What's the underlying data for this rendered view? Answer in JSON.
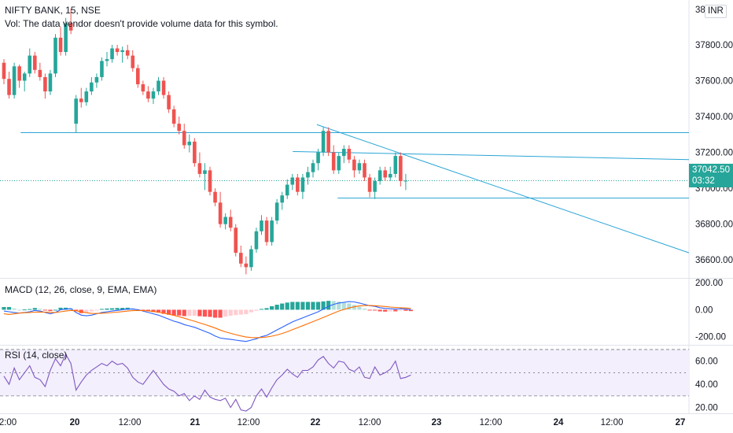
{
  "header": {
    "symbol_line": "NIFTY BANK, 15, NSE",
    "volume_note": "Vol: The data vendor doesn't provide volume data for this symbol."
  },
  "currency_badge": "INR",
  "price_scale_top_label": "38",
  "last_price": {
    "value": "37042.50",
    "countdown": "03:32"
  },
  "colors": {
    "up": "#26a69a",
    "down": "#ef5350",
    "trendline": "#2aa5d6",
    "macd_line": "#2962ff",
    "signal_line": "#ff6d00",
    "hist_up_strong": "#26a69a",
    "hist_up_weak": "#b2dfdb",
    "hist_down_strong": "#ff5252",
    "hist_down_weak": "#ffcdd2",
    "rsi_line": "#7e57c2",
    "rsi_band": "#f3effc"
  },
  "chart_data": [
    {
      "type": "candlestick",
      "title": "NIFTY BANK, 15, NSE",
      "ylim": [
        36500,
        38050
      ],
      "y_ticks": [
        "37800.00",
        "37600.00",
        "37400.00",
        "37200.00",
        "37000.00",
        "36800.00",
        "36600.00"
      ],
      "x_ticks": [
        "2:00",
        "20",
        "12:00",
        "21",
        "12:00",
        "22",
        "12:00",
        "23",
        "12:00",
        "24",
        "12:00",
        "27"
      ],
      "candles": [
        [
          37700,
          37720,
          37580,
          37610
        ],
        [
          37610,
          37650,
          37500,
          37520
        ],
        [
          37520,
          37700,
          37500,
          37680
        ],
        [
          37680,
          37690,
          37560,
          37600
        ],
        [
          37600,
          37650,
          37540,
          37640
        ],
        [
          37640,
          37780,
          37620,
          37740
        ],
        [
          37740,
          37760,
          37640,
          37660
        ],
        [
          37660,
          37700,
          37600,
          37620
        ],
        [
          37620,
          37640,
          37500,
          37540
        ],
        [
          37540,
          37660,
          37520,
          37640
        ],
        [
          37640,
          37860,
          37620,
          37840
        ],
        [
          37840,
          37900,
          37740,
          37760
        ],
        [
          37760,
          37950,
          37740,
          37920
        ],
        [
          37920,
          38000,
          37860,
          37880
        ],
        [
          37360,
          37520,
          37310,
          37500
        ],
        [
          37500,
          37560,
          37450,
          37480
        ],
        [
          37480,
          37560,
          37460,
          37540
        ],
        [
          37540,
          37620,
          37520,
          37590
        ],
        [
          37590,
          37640,
          37560,
          37620
        ],
        [
          37620,
          37730,
          37600,
          37710
        ],
        [
          37710,
          37760,
          37680,
          37720
        ],
        [
          37720,
          37800,
          37700,
          37780
        ],
        [
          37780,
          37800,
          37740,
          37760
        ],
        [
          37760,
          37790,
          37700,
          37770
        ],
        [
          37770,
          37800,
          37720,
          37740
        ],
        [
          37740,
          37770,
          37650,
          37670
        ],
        [
          37670,
          37690,
          37560,
          37580
        ],
        [
          37580,
          37600,
          37520,
          37540
        ],
        [
          37540,
          37570,
          37480,
          37500
        ],
        [
          37500,
          37560,
          37470,
          37540
        ],
        [
          37540,
          37620,
          37520,
          37600
        ],
        [
          37600,
          37620,
          37500,
          37520
        ],
        [
          37520,
          37540,
          37420,
          37440
        ],
        [
          37440,
          37460,
          37340,
          37360
        ],
        [
          37360,
          37400,
          37300,
          37320
        ],
        [
          37320,
          37360,
          37220,
          37240
        ],
        [
          37240,
          37300,
          37200,
          37260
        ],
        [
          37260,
          37280,
          37120,
          37140
        ],
        [
          37140,
          37200,
          37060,
          37080
        ],
        [
          37080,
          37140,
          36990,
          37100
        ],
        [
          37100,
          37120,
          36960,
          36980
        ],
        [
          36980,
          37000,
          36900,
          36920
        ],
        [
          36920,
          36980,
          36780,
          36800
        ],
        [
          36800,
          36860,
          36770,
          36840
        ],
        [
          36840,
          36880,
          36760,
          36780
        ],
        [
          36780,
          36800,
          36620,
          36640
        ],
        [
          36640,
          36680,
          36560,
          36580
        ],
        [
          36580,
          36620,
          36520,
          36560
        ],
        [
          36560,
          36680,
          36540,
          36660
        ],
        [
          36660,
          36780,
          36640,
          36760
        ],
        [
          36760,
          36850,
          36740,
          36820
        ],
        [
          36820,
          36840,
          36680,
          36700
        ],
        [
          36700,
          36840,
          36680,
          36820
        ],
        [
          36820,
          36940,
          36800,
          36920
        ],
        [
          36920,
          36980,
          36880,
          36960
        ],
        [
          36960,
          37050,
          36940,
          37020
        ],
        [
          37020,
          37080,
          36990,
          37060
        ],
        [
          37060,
          37080,
          36960,
          36980
        ],
        [
          36980,
          37080,
          36940,
          37060
        ],
        [
          37060,
          37120,
          37020,
          37090
        ],
        [
          37090,
          37160,
          37060,
          37140
        ],
        [
          37140,
          37220,
          37100,
          37200
        ],
        [
          37200,
          37340,
          37180,
          37320
        ],
        [
          37320,
          37340,
          37180,
          37200
        ],
        [
          37200,
          37240,
          37080,
          37100
        ],
        [
          37100,
          37200,
          37080,
          37180
        ],
        [
          37180,
          37240,
          37140,
          37220
        ],
        [
          37220,
          37240,
          37140,
          37160
        ],
        [
          37160,
          37180,
          37060,
          37100
        ],
        [
          37100,
          37160,
          37080,
          37140
        ],
        [
          37140,
          37160,
          37040,
          37060
        ],
        [
          37060,
          37080,
          36950,
          36980
        ],
        [
          36980,
          37060,
          36940,
          37040
        ],
        [
          37040,
          37120,
          37020,
          37100
        ],
        [
          37100,
          37120,
          37040,
          37060
        ],
        [
          37060,
          37120,
          37040,
          37080
        ],
        [
          37080,
          37200,
          37060,
          37180
        ],
        [
          37180,
          37200,
          37010,
          37040
        ],
        [
          37040,
          37080,
          36990,
          37042.5
        ]
      ],
      "last_price": 37042.5,
      "horizontal_levels": [
        37310,
        36945
      ],
      "trendlines": [
        {
          "from": [
            0.03,
            37310
          ],
          "to": [
            1.0,
            37310
          ]
        },
        {
          "from": [
            0.46,
            37355
          ],
          "to": [
            1.0,
            36640
          ]
        },
        {
          "from": [
            0.425,
            37205
          ],
          "to": [
            1.0,
            37160
          ]
        },
        {
          "from": [
            0.49,
            36945
          ],
          "to": [
            1.0,
            36945
          ]
        }
      ]
    },
    {
      "type": "macd",
      "title": "MACD (12, 26, close, 9, EMA, EMA)",
      "ylim": [
        -260,
        230
      ],
      "y_ticks": [
        "200.00",
        "0.00",
        "-200.00"
      ],
      "macd": [
        -10,
        -15,
        -20,
        -25,
        -20,
        -15,
        -5,
        -10,
        -20,
        -30,
        -20,
        0,
        5,
        8,
        -20,
        -40,
        -45,
        -40,
        -30,
        -20,
        -15,
        -10,
        -5,
        0,
        5,
        5,
        0,
        -10,
        -20,
        -30,
        -40,
        -55,
        -70,
        -85,
        -95,
        -110,
        -120,
        -130,
        -145,
        -160,
        -175,
        -195,
        -210,
        -215,
        -220,
        -225,
        -230,
        -235,
        -225,
        -215,
        -200,
        -190,
        -170,
        -150,
        -130,
        -110,
        -90,
        -75,
        -60,
        -45,
        -30,
        -15,
        5,
        25,
        40,
        50,
        55,
        60,
        58,
        50,
        40,
        30,
        25,
        15,
        10,
        8,
        5,
        8,
        5,
        0
      ],
      "signal": [
        -30,
        -35,
        -30,
        -25,
        -22,
        -20,
        -18,
        -17,
        -18,
        -20,
        -20,
        -15,
        -10,
        -5,
        -8,
        -15,
        -22,
        -27,
        -28,
        -26,
        -24,
        -21,
        -18,
        -14,
        -10,
        -7,
        -5,
        -6,
        -9,
        -13,
        -18,
        -25,
        -33,
        -42,
        -52,
        -63,
        -74,
        -85,
        -97,
        -109,
        -122,
        -136,
        -151,
        -164,
        -175,
        -185,
        -194,
        -202,
        -206,
        -207,
        -206,
        -202,
        -196,
        -187,
        -176,
        -163,
        -148,
        -133,
        -118,
        -103,
        -88,
        -73,
        -57,
        -41,
        -25,
        -10,
        2,
        13,
        22,
        28,
        31,
        31,
        30,
        27,
        24,
        20,
        17,
        15,
        13,
        10
      ],
      "histogram": [
        20,
        20,
        10,
        0,
        2,
        5,
        13,
        7,
        -2,
        -10,
        0,
        15,
        15,
        13,
        -12,
        -25,
        -23,
        -13,
        -2,
        6,
        9,
        11,
        13,
        14,
        15,
        12,
        5,
        -4,
        -11,
        -17,
        -22,
        -30,
        -37,
        -43,
        -43,
        -47,
        -46,
        -45,
        -48,
        -51,
        -53,
        -59,
        -59,
        -51,
        -45,
        -40,
        -36,
        -33,
        -19,
        -8,
        6,
        12,
        26,
        37,
        46,
        53,
        58,
        58,
        58,
        58,
        58,
        58,
        62,
        66,
        65,
        60,
        53,
        47,
        36,
        22,
        9,
        -1,
        -5,
        -12,
        -14,
        -12,
        -12,
        -7,
        -8,
        -10
      ]
    },
    {
      "type": "rsi",
      "title": "RSI (14, close)",
      "ylim": [
        15,
        72
      ],
      "y_ticks": [
        "60.00",
        "40.00",
        "20.00"
      ],
      "upper_band": 70,
      "middle_band": 50,
      "lower_band": 30,
      "rsi": [
        47,
        40,
        54,
        44,
        50,
        56,
        46,
        44,
        38,
        52,
        62,
        56,
        66,
        58,
        35,
        42,
        48,
        52,
        55,
        58,
        56,
        60,
        57,
        58,
        54,
        46,
        42,
        40,
        46,
        52,
        46,
        40,
        36,
        34,
        30,
        32,
        26,
        30,
        27,
        35,
        29,
        27,
        26,
        28,
        20,
        27,
        18,
        17,
        20,
        30,
        36,
        29,
        37,
        44,
        48,
        53,
        49,
        46,
        52,
        52,
        55,
        61,
        64,
        58,
        54,
        60,
        59,
        53,
        51,
        55,
        46,
        45,
        55,
        48,
        50,
        53,
        60,
        45,
        46,
        48
      ]
    }
  ]
}
